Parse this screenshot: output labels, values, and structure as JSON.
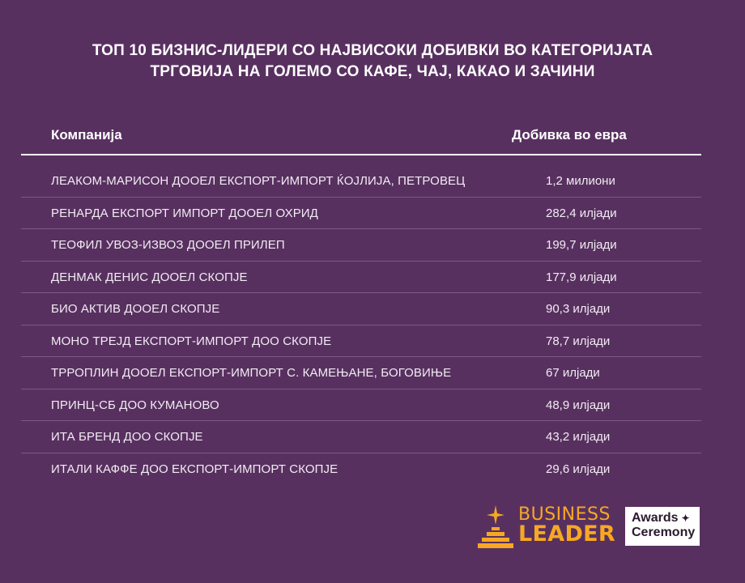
{
  "title": {
    "line1": "ТОП 10 БИЗНИС-ЛИДЕРИ СО НАЈВИСОКИ ДОБИВКИ ВО КАТЕГОРИЈАТА",
    "line2": "ТРГОВИЈА НА ГОЛЕМО СО КАФЕ, ЧАЈ, КАКАО И ЗАЧИНИ"
  },
  "table": {
    "header": {
      "company": "Компанија",
      "profit": "Добивка во евра"
    },
    "rows": [
      {
        "company": "ЛЕАКОМ-МАРИСОН ДООЕЛ ЕКСПОРТ-ИМПОРТ ЌОЈЛИЈА, ПЕТРОВЕЦ",
        "profit": "1,2 милиони"
      },
      {
        "company": "РЕНАРДА ЕКСПОРТ ИМПОРТ ДООЕЛ ОХРИД",
        "profit": "282,4 илјади"
      },
      {
        "company": "ТЕОФИЛ УВОЗ-ИЗВОЗ ДООЕЛ ПРИЛЕП",
        "profit": "199,7 илјади"
      },
      {
        "company": "ДЕНМАК ДЕНИС ДООЕЛ СКОПЈЕ",
        "profit": "177,9 илјади"
      },
      {
        "company": "БИО АКТИВ ДООЕЛ СКОПЈЕ",
        "profit": "90,3 илјади"
      },
      {
        "company": "МОНО ТРЕЈД ЕКСПОРТ-ИМПОРТ ДОО СКОПЈЕ",
        "profit": "78,7 илјади"
      },
      {
        "company": "ТРРОПЛИН ДООЕЛ ЕКСПОРТ-ИМПОРТ С. КАМЕЊАНЕ, БОГОВИЊЕ",
        "profit": "67 илјади"
      },
      {
        "company": "ПРИНЦ-СБ ДОО КУМАНОВО",
        "profit": "48,9 илјади"
      },
      {
        "company": "ИТА БРЕНД ДОО СКОПЈЕ",
        "profit": "43,2 илјади"
      },
      {
        "company": "ИТАЛИ КАФФЕ ДОО ЕКСПОРТ-ИМПОРТ СКОПЈЕ",
        "profit": "29,6 илјади"
      }
    ]
  },
  "logo": {
    "line1": "BUSINESS",
    "line2": "LEADER",
    "badge_line1": "Awards",
    "badge_line2": "Ceremony",
    "badge_star": "✦",
    "icon": "star-podium-icon"
  },
  "colors": {
    "background": "#583060",
    "accent": "#f7a823",
    "text": "#ffffff",
    "divider": "#7a5a80"
  }
}
